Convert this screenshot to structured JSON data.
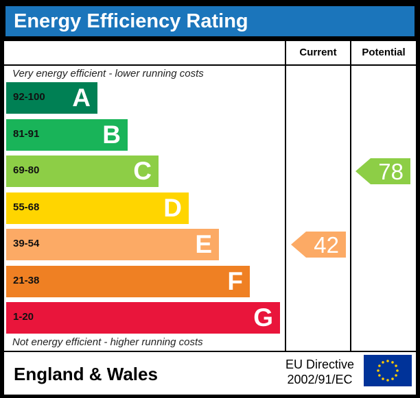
{
  "title": "Energy Efficiency Rating",
  "header": {
    "current": "Current",
    "potential": "Potential"
  },
  "notes": {
    "top": "Very energy efficient - lower running costs",
    "bottom": "Not energy efficient - higher running costs"
  },
  "footer": {
    "region": "England & Wales",
    "directive_line1": "EU Directive",
    "directive_line2": "2002/91/EC"
  },
  "chart_data": {
    "type": "bar",
    "categories": [
      "A",
      "B",
      "C",
      "D",
      "E",
      "F",
      "G"
    ],
    "bands": [
      {
        "letter": "A",
        "range": "92-100",
        "color": "#008054"
      },
      {
        "letter": "B",
        "range": "81-91",
        "color": "#19b459"
      },
      {
        "letter": "C",
        "range": "69-80",
        "color": "#8dce46"
      },
      {
        "letter": "D",
        "range": "55-68",
        "color": "#ffd500"
      },
      {
        "letter": "E",
        "range": "39-54",
        "color": "#fcaa65"
      },
      {
        "letter": "F",
        "range": "21-38",
        "color": "#ef8023"
      },
      {
        "letter": "G",
        "range": "1-20",
        "color": "#e9153b"
      }
    ],
    "current": {
      "value": 42,
      "band": "E",
      "color": "#fcaa65"
    },
    "potential": {
      "value": 78,
      "band": "C",
      "color": "#8dce46"
    }
  }
}
